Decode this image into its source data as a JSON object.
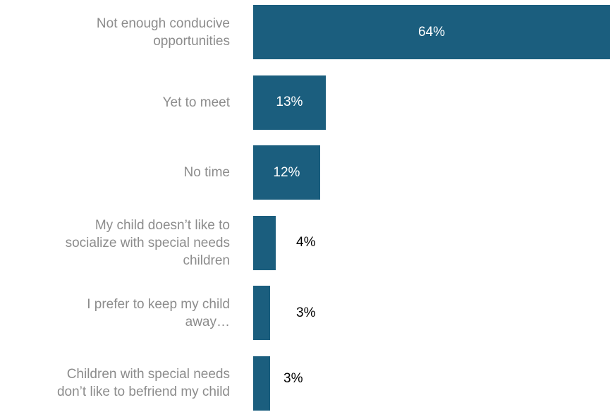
{
  "chart_data": {
    "type": "bar",
    "orientation": "horizontal",
    "categories": [
      "Not enough conducive\nopportunities",
      "Yet to meet",
      "No time",
      "My child doesn’t like to\nsocialize with special  needs\nchildren",
      "I prefer to keep my child\naway…",
      "Children with special needs\ndon’t like to befriend my child"
    ],
    "values": [
      64,
      13,
      12,
      4,
      3,
      3
    ],
    "value_labels": [
      "64%",
      "13%",
      "12%",
      "4%",
      "3%",
      "3%"
    ],
    "xlim": [
      0,
      64
    ],
    "grid": false,
    "legend": "none",
    "colors": {
      "bar": "#1b5e7e",
      "label_inside": "#ffffff",
      "label_outside": "#000000",
      "category_text": "#8c8c8c"
    }
  }
}
